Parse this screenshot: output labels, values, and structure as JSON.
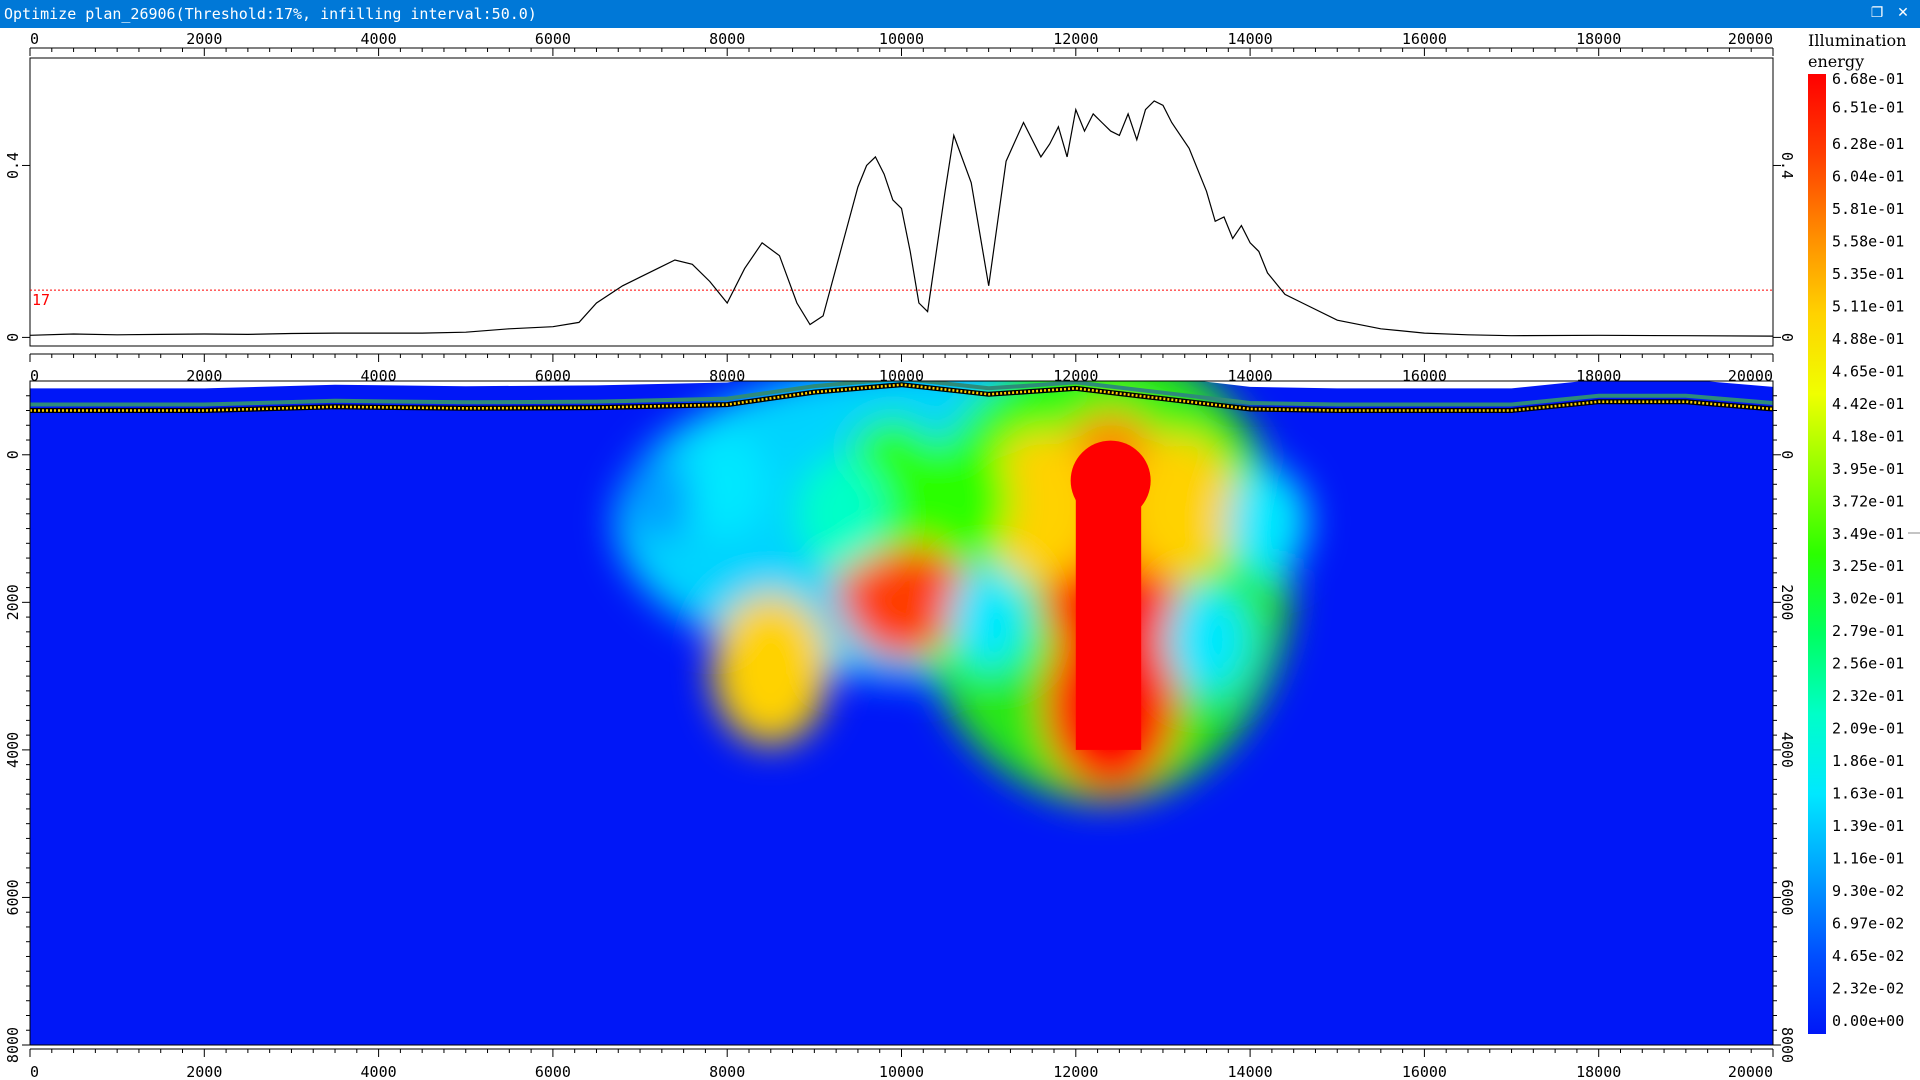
{
  "window": {
    "title": "Optimize plan_26906(Threshold:17%, infilling interval:50.0)",
    "restore_icon": "restore-icon",
    "close_icon": "close-icon"
  },
  "chart_data": [
    {
      "type": "line",
      "name": "illumination-profile",
      "x": [
        0,
        500,
        1000,
        1500,
        2000,
        2500,
        3000,
        3500,
        4000,
        4500,
        5000,
        5500,
        6000,
        6300,
        6500,
        6800,
        7000,
        7200,
        7400,
        7600,
        7800,
        8000,
        8200,
        8400,
        8600,
        8800,
        8950,
        9100,
        9300,
        9500,
        9600,
        9700,
        9800,
        9900,
        10000,
        10100,
        10200,
        10300,
        10500,
        10600,
        10800,
        11000,
        11200,
        11400,
        11600,
        11700,
        11800,
        11900,
        12000,
        12100,
        12200,
        12300,
        12400,
        12500,
        12600,
        12700,
        12800,
        12900,
        13000,
        13100,
        13300,
        13500,
        13600,
        13700,
        13800,
        13900,
        14000,
        14100,
        14200,
        14400,
        14600,
        15000,
        15500,
        16000,
        16500,
        17000,
        18000,
        19000,
        20000
      ],
      "y": [
        0.005,
        0.008,
        0.006,
        0.007,
        0.008,
        0.007,
        0.009,
        0.01,
        0.01,
        0.01,
        0.012,
        0.02,
        0.025,
        0.035,
        0.08,
        0.12,
        0.14,
        0.16,
        0.18,
        0.17,
        0.13,
        0.08,
        0.16,
        0.22,
        0.19,
        0.08,
        0.03,
        0.05,
        0.2,
        0.35,
        0.4,
        0.42,
        0.38,
        0.32,
        0.3,
        0.2,
        0.08,
        0.06,
        0.34,
        0.47,
        0.36,
        0.12,
        0.41,
        0.5,
        0.42,
        0.45,
        0.49,
        0.42,
        0.53,
        0.48,
        0.52,
        0.5,
        0.48,
        0.47,
        0.52,
        0.46,
        0.53,
        0.55,
        0.54,
        0.5,
        0.44,
        0.34,
        0.27,
        0.28,
        0.23,
        0.26,
        0.22,
        0.2,
        0.15,
        0.1,
        0.08,
        0.04,
        0.02,
        0.01,
        0.006,
        0.004,
        0.005,
        0.004,
        0.003
      ],
      "xlim": [
        0,
        20000
      ],
      "ylim": [
        -0.02,
        0.65
      ],
      "x_ticks": [
        "0",
        "2000",
        "4000",
        "6000",
        "8000",
        "10000",
        "12000",
        "14000",
        "16000",
        "18000",
        "20000"
      ],
      "y_ticks": [
        "0",
        "0.4"
      ],
      "threshold": {
        "value": 0.11,
        "label": "17",
        "color": "#ff0000"
      },
      "line_color": "#000000"
    },
    {
      "type": "heatmap",
      "name": "illumination-section",
      "x_ticks": [
        "0",
        "2000",
        "4000",
        "6000",
        "8000",
        "10000",
        "12000",
        "14000",
        "16000",
        "18000",
        "20000"
      ],
      "y_ticks": [
        "0",
        "2000",
        "4000",
        "6000",
        "8000"
      ],
      "xlim": [
        0,
        20000
      ],
      "ylim": [
        -1000,
        8000
      ],
      "background_color": "#0017f7",
      "surface_profile": [
        [
          0,
          -600
        ],
        [
          2000,
          -600
        ],
        [
          3500,
          -650
        ],
        [
          5000,
          -630
        ],
        [
          6500,
          -640
        ],
        [
          8000,
          -680
        ],
        [
          9000,
          -850
        ],
        [
          10000,
          -950
        ],
        [
          11000,
          -820
        ],
        [
          12000,
          -900
        ],
        [
          13000,
          -760
        ],
        [
          14000,
          -620
        ],
        [
          15000,
          -600
        ],
        [
          17000,
          -600
        ],
        [
          18000,
          -720
        ],
        [
          19000,
          -720
        ],
        [
          20000,
          -620
        ]
      ],
      "hotspots": [
        {
          "x": 12400,
          "z": 1800,
          "value": 0.68
        },
        {
          "x": 12400,
          "z": 3400,
          "value": 0.68
        },
        {
          "x": 12400,
          "z": 500,
          "value": 0.6
        },
        {
          "x": 13200,
          "z": 700,
          "value": 0.52
        },
        {
          "x": 11600,
          "z": 700,
          "value": 0.55
        },
        {
          "x": 10000,
          "z": 1600,
          "value": 0.66
        },
        {
          "x": 9900,
          "z": 400,
          "value": 0.45
        },
        {
          "x": 10700,
          "z": 600,
          "value": 0.4
        },
        {
          "x": 8500,
          "z": 2900,
          "value": 0.55
        },
        {
          "x": 9300,
          "z": 800,
          "value": 0.35
        },
        {
          "x": 8000,
          "z": 400,
          "value": 0.3
        },
        {
          "x": 7200,
          "z": 600,
          "value": 0.2
        },
        {
          "x": 14200,
          "z": 900,
          "value": 0.3
        },
        {
          "x": 13500,
          "z": 2500,
          "value": 0.3
        },
        {
          "x": 11000,
          "z": 2200,
          "value": 0.28
        }
      ]
    }
  ],
  "colorbar": {
    "title_line1": "Illumination",
    "title_line2": "energy",
    "labels": [
      "6.68e-01",
      "6.51e-01",
      "6.28e-01",
      "6.04e-01",
      "5.81e-01",
      "5.58e-01",
      "5.35e-01",
      "5.11e-01",
      "4.88e-01",
      "4.65e-01",
      "4.42e-01",
      "4.18e-01",
      "3.95e-01",
      "3.72e-01",
      "3.49e-01",
      "3.25e-01",
      "3.02e-01",
      "2.79e-01",
      "2.56e-01",
      "2.32e-01",
      "2.09e-01",
      "1.86e-01",
      "1.63e-01",
      "1.39e-01",
      "1.16e-01",
      "9.30e-02",
      "6.97e-02",
      "4.65e-02",
      "2.32e-02",
      "0.00e+00"
    ],
    "colors": [
      "#ff0000",
      "#ff3d00",
      "#ff8c00",
      "#ffd200",
      "#f0ff00",
      "#8fff00",
      "#2bff00",
      "#00ff60",
      "#00ffc8",
      "#00e8ff",
      "#00a0ff",
      "#0050ff",
      "#0017f7"
    ]
  }
}
